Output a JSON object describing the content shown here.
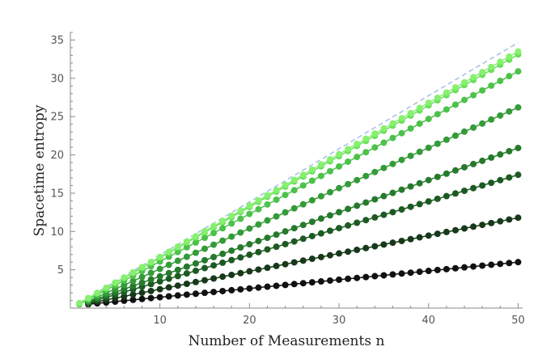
{
  "chart_data": {
    "type": "scatter",
    "title": "",
    "xlabel": "Number of Measurements n",
    "ylabel": "Spacetime entropy",
    "xlim": [
      0,
      50.5
    ],
    "ylim": [
      0,
      36
    ],
    "x_ticks": [
      10,
      20,
      30,
      40,
      50
    ],
    "y_ticks": [
      5,
      10,
      15,
      20,
      25,
      30,
      35
    ],
    "x_tick_labels": [
      "10",
      "20",
      "30",
      "40",
      "50"
    ],
    "y_tick_labels": [
      "5",
      "10",
      "15",
      "20",
      "25",
      "30",
      "35"
    ],
    "x_minor_step": 2,
    "y_minor_step": 1,
    "grid": false,
    "n_range": [
      1,
      50
    ],
    "reference_line": {
      "style": "dashed",
      "color": "#a9c2e6",
      "x": [
        1,
        50
      ],
      "y": [
        0.69,
        34.66
      ]
    },
    "series": [
      {
        "color": "#111111",
        "x_start": 2,
        "y_start": 0.5,
        "y_end": 6.0
      },
      {
        "color": "#17391a",
        "x_start": 2,
        "y_start": 0.6,
        "y_end": 11.8
      },
      {
        "color": "#1c5a22",
        "x_start": 2,
        "y_start": 0.7,
        "y_end": 17.4
      },
      {
        "color": "#267a2c",
        "x_start": 2,
        "y_start": 0.8,
        "y_end": 20.9
      },
      {
        "color": "#349b38",
        "x_start": 2,
        "y_start": 0.9,
        "y_end": 26.2
      },
      {
        "color": "#4cc24a",
        "x_start": 1,
        "y_start": 0.5,
        "y_end": 30.9
      },
      {
        "color": "#6ade5c",
        "x_start": 1,
        "y_start": 0.6,
        "y_end": 33.1
      },
      {
        "color": "#86f06f",
        "x_start": 1,
        "y_start": 0.65,
        "y_end": 33.5
      }
    ]
  }
}
